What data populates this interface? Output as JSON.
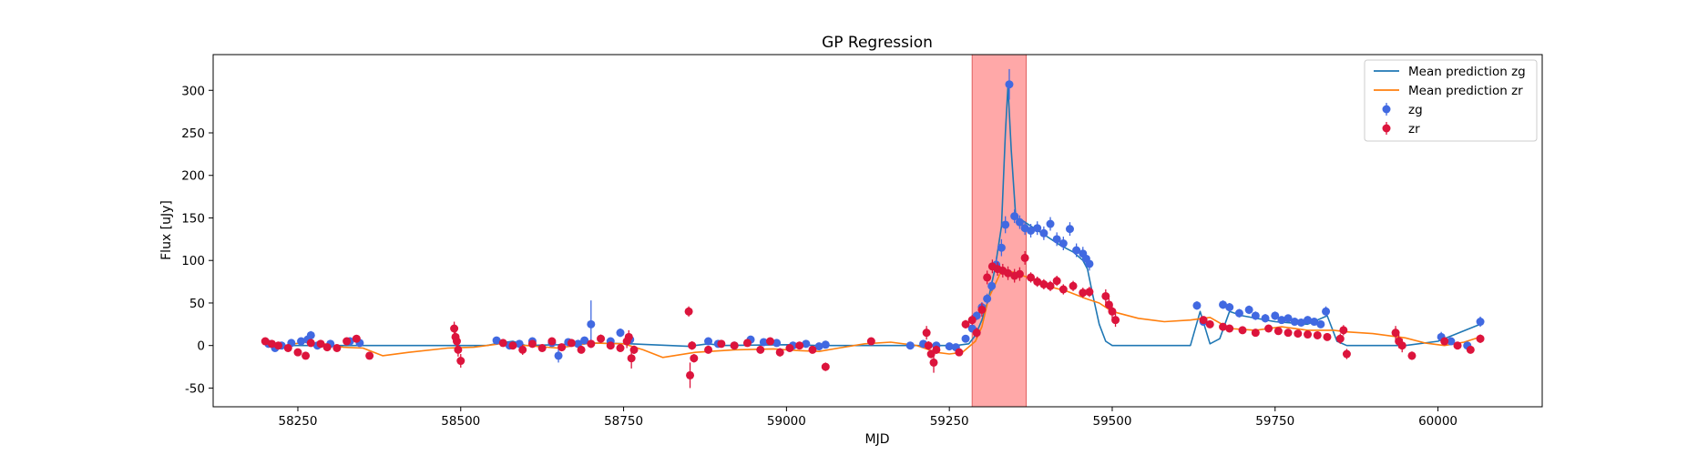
{
  "chart_data": {
    "type": "scatter",
    "title": "GP Regression",
    "xlabel": "MJD",
    "ylabel": "Flux [uJy]",
    "xlim": [
      58120,
      60160
    ],
    "ylim": [
      -72,
      342
    ],
    "x_ticks": [
      58250,
      58500,
      58750,
      59000,
      59250,
      59500,
      59750,
      60000
    ],
    "y_ticks": [
      -50,
      0,
      50,
      100,
      150,
      200,
      250,
      300
    ],
    "grid": false,
    "legend_position": "top-right",
    "shaded_region": {
      "x_start": 59285,
      "x_end": 59368,
      "color": "#ff9999"
    },
    "legend": [
      {
        "label": "Mean prediction zg",
        "kind": "line",
        "color": "#1f77b4"
      },
      {
        "label": "Mean prediction zr",
        "kind": "line",
        "color": "#ff7f0e"
      },
      {
        "label": "zg",
        "kind": "errorbar",
        "color": "#4169e1"
      },
      {
        "label": "zr",
        "kind": "errorbar",
        "color": "#dc143c"
      }
    ],
    "series": [
      {
        "name": "Mean prediction zg",
        "kind": "line",
        "color": "#1f77b4",
        "x": [
          58200,
          58540,
          58560,
          58580,
          58600,
          58650,
          58700,
          58760,
          58850,
          58880,
          58900,
          59000,
          59050,
          59200,
          59260,
          59280,
          59290,
          59300,
          59310,
          59320,
          59330,
          59336,
          59340,
          59345,
          59352,
          59360,
          59380,
          59400,
          59420,
          59440,
          59455,
          59462,
          59470,
          59480,
          59490,
          59500,
          59620,
          59635,
          59650,
          59665,
          59680,
          59700,
          59750,
          59800,
          59830,
          59845,
          59860,
          59900,
          59950,
          60000,
          60065
        ],
        "y": [
          0,
          0,
          3,
          5,
          0,
          1,
          3,
          2,
          -1,
          2,
          0,
          1,
          0,
          0,
          0,
          2,
          12,
          30,
          55,
          90,
          140,
          250,
          305,
          230,
          150,
          148,
          138,
          128,
          118,
          110,
          100,
          90,
          60,
          25,
          5,
          0,
          0,
          40,
          2,
          8,
          40,
          35,
          28,
          25,
          35,
          5,
          0,
          0,
          0,
          5,
          25
        ]
      },
      {
        "name": "Mean prediction zr",
        "kind": "line",
        "color": "#ff7f0e",
        "x": [
          58200,
          58230,
          58260,
          58290,
          58320,
          58350,
          58380,
          58420,
          58480,
          58520,
          58560,
          58600,
          58650,
          58700,
          58750,
          58780,
          58810,
          58860,
          58920,
          58980,
          59020,
          59050,
          59080,
          59120,
          59160,
          59200,
          59230,
          59250,
          59270,
          59290,
          59300,
          59310,
          59330,
          59350,
          59370,
          59400,
          59430,
          59460,
          59480,
          59500,
          59540,
          59580,
          59620,
          59650,
          59680,
          59720,
          59760,
          59800,
          59840,
          59860,
          59900,
          59950,
          59980,
          60010,
          60040,
          60065
        ],
        "y": [
          4,
          0,
          4,
          2,
          -2,
          -3,
          -12,
          -8,
          -3,
          -2,
          2,
          0,
          -3,
          3,
          2,
          -5,
          -14,
          -8,
          -5,
          -4,
          -6,
          -7,
          -3,
          2,
          4,
          0,
          -8,
          -10,
          -8,
          5,
          22,
          55,
          88,
          86,
          80,
          70,
          64,
          55,
          50,
          40,
          32,
          28,
          30,
          33,
          20,
          18,
          22,
          18,
          18,
          16,
          14,
          9,
          3,
          0,
          4,
          10
        ]
      },
      {
        "name": "zg",
        "kind": "errorbar",
        "color": "#4169e1",
        "x": [
          58205,
          58215,
          58225,
          58240,
          58255,
          58265,
          58270,
          58280,
          58300,
          58330,
          58345,
          58555,
          58575,
          58590,
          58610,
          58640,
          58650,
          58665,
          58680,
          58690,
          58700,
          58730,
          58745,
          58760,
          58880,
          58895,
          58920,
          58945,
          58965,
          58985,
          59010,
          59030,
          59050,
          59060,
          59190,
          59210,
          59230,
          59250,
          59260,
          59275,
          59285,
          59292,
          59300,
          59308,
          59315,
          59322,
          59330,
          59336,
          59342,
          59350,
          59358,
          59366,
          59375,
          59385,
          59395,
          59405,
          59415,
          59425,
          59435,
          59445,
          59455,
          59460,
          59465,
          59630,
          59640,
          59670,
          59680,
          59695,
          59710,
          59720,
          59735,
          59750,
          59760,
          59770,
          59780,
          59790,
          59800,
          59810,
          59820,
          59828,
          60005,
          60020,
          60045,
          60065
        ],
        "y": [
          2,
          -3,
          0,
          3,
          5,
          7,
          12,
          0,
          2,
          5,
          3,
          6,
          0,
          2,
          5,
          3,
          -12,
          4,
          2,
          6,
          25,
          5,
          15,
          7,
          5,
          2,
          0,
          7,
          4,
          3,
          0,
          2,
          -1,
          1,
          0,
          2,
          0,
          -1,
          -2,
          8,
          20,
          35,
          45,
          55,
          70,
          95,
          115,
          142,
          307,
          152,
          145,
          138,
          135,
          138,
          132,
          143,
          125,
          120,
          137,
          112,
          108,
          102,
          96,
          47,
          28,
          48,
          45,
          38,
          42,
          35,
          32,
          35,
          30,
          32,
          28,
          27,
          30,
          28,
          25,
          40,
          10,
          5,
          0,
          28
        ],
        "yerr": [
          3,
          3,
          4,
          3,
          3,
          3,
          5,
          3,
          4,
          3,
          3,
          3,
          3,
          3,
          3,
          3,
          8,
          3,
          3,
          3,
          28,
          3,
          5,
          3,
          3,
          3,
          3,
          3,
          3,
          3,
          3,
          3,
          3,
          3,
          3,
          3,
          3,
          3,
          3,
          3,
          4,
          5,
          6,
          6,
          6,
          8,
          10,
          10,
          18,
          8,
          8,
          8,
          8,
          8,
          8,
          8,
          8,
          8,
          8,
          8,
          8,
          8,
          8,
          5,
          4,
          5,
          5,
          5,
          5,
          5,
          5,
          5,
          4,
          4,
          4,
          4,
          4,
          4,
          4,
          6,
          6,
          4,
          4,
          6
        ]
      },
      {
        "name": "zr",
        "kind": "errorbar",
        "color": "#dc143c",
        "x": [
          58200,
          58210,
          58220,
          58235,
          58250,
          58262,
          58270,
          58285,
          58295,
          58310,
          58325,
          58340,
          58360,
          58490,
          58492,
          58494,
          58496,
          58500,
          58565,
          58580,
          58595,
          58610,
          58625,
          58640,
          58655,
          58670,
          58685,
          58700,
          58715,
          58730,
          58745,
          58755,
          58758,
          58762,
          58766,
          58850,
          58852,
          58855,
          58858,
          58880,
          58900,
          58920,
          58940,
          58960,
          58975,
          58990,
          59005,
          59020,
          59040,
          59060,
          59130,
          59215,
          59218,
          59222,
          59226,
          59230,
          59265,
          59275,
          59285,
          59292,
          59300,
          59308,
          59316,
          59324,
          59332,
          59340,
          59350,
          59358,
          59366,
          59375,
          59385,
          59395,
          59405,
          59415,
          59425,
          59440,
          59455,
          59465,
          59490,
          59495,
          59500,
          59505,
          59640,
          59650,
          59670,
          59680,
          59700,
          59720,
          59740,
          59755,
          59770,
          59785,
          59800,
          59815,
          59830,
          59850,
          59855,
          59860,
          59935,
          59940,
          59945,
          59960,
          60010,
          60030,
          60050,
          60065
        ],
        "y": [
          5,
          2,
          0,
          -3,
          -8,
          -12,
          3,
          2,
          -2,
          -3,
          5,
          8,
          -12,
          20,
          10,
          5,
          -5,
          -18,
          3,
          0,
          -5,
          2,
          -3,
          5,
          -2,
          3,
          -5,
          2,
          8,
          0,
          -3,
          5,
          10,
          -15,
          -5,
          40,
          -35,
          0,
          -15,
          -5,
          2,
          0,
          3,
          -5,
          5,
          -8,
          -3,
          0,
          -5,
          -25,
          5,
          15,
          0,
          -10,
          -20,
          -5,
          -8,
          25,
          30,
          15,
          42,
          80,
          93,
          90,
          88,
          85,
          82,
          84,
          103,
          80,
          75,
          72,
          70,
          76,
          66,
          70,
          62,
          63,
          58,
          48,
          40,
          30,
          30,
          25,
          22,
          20,
          18,
          15,
          20,
          17,
          15,
          14,
          13,
          12,
          10,
          8,
          18,
          -10,
          15,
          5,
          0,
          -12,
          5,
          0,
          -5,
          8
        ],
        "yerr": [
          3,
          3,
          3,
          3,
          3,
          3,
          3,
          3,
          3,
          3,
          3,
          3,
          3,
          8,
          8,
          8,
          8,
          8,
          3,
          3,
          6,
          3,
          3,
          3,
          3,
          3,
          3,
          3,
          5,
          3,
          3,
          8,
          8,
          12,
          5,
          6,
          15,
          5,
          5,
          3,
          3,
          3,
          3,
          3,
          3,
          5,
          3,
          3,
          3,
          5,
          3,
          8,
          5,
          5,
          12,
          5,
          3,
          5,
          6,
          6,
          8,
          8,
          8,
          8,
          8,
          8,
          8,
          8,
          8,
          6,
          6,
          6,
          6,
          6,
          6,
          6,
          6,
          6,
          8,
          8,
          8,
          8,
          4,
          4,
          4,
          4,
          4,
          4,
          4,
          4,
          4,
          4,
          4,
          4,
          4,
          6,
          6,
          6,
          8,
          8,
          8,
          5,
          4,
          4,
          4,
          5
        ]
      }
    ]
  }
}
